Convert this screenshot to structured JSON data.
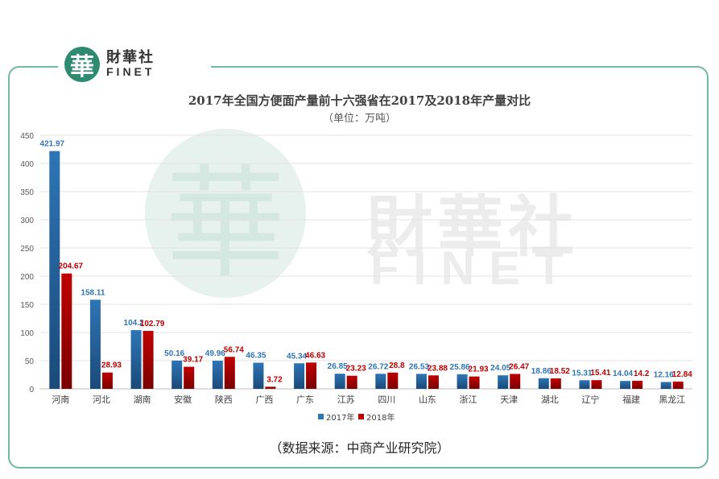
{
  "brand": {
    "logo_char": "華",
    "name_cn": "財華社",
    "name_en": "FINET"
  },
  "source_note": "（数据来源：中商产业研究院）",
  "colors": {
    "series_2017": "#2e75b6",
    "series_2018": "#c00000",
    "frame": "#6fb8a4",
    "brand": "#2f8b6f"
  },
  "chart_data": {
    "type": "bar",
    "title": "2017年全国方便面产量前十六强省在2017及2018年产量对比",
    "subtitle": "（单位：万吨）",
    "categories": [
      "河南",
      "河北",
      "湖南",
      "安徽",
      "陕西",
      "广西",
      "广东",
      "江苏",
      "四川",
      "山东",
      "浙江",
      "天津",
      "湖北",
      "辽宁",
      "福建",
      "黑龙江"
    ],
    "series": [
      {
        "name": "2017年",
        "values": [
          421.97,
          158.11,
          104.2,
          50.16,
          49.96,
          46.35,
          45.34,
          26.85,
          26.72,
          26.53,
          25.86,
          24.05,
          18.86,
          15.31,
          14.04,
          12.16
        ]
      },
      {
        "name": "2018年",
        "values": [
          204.67,
          28.93,
          102.79,
          39.17,
          56.74,
          3.72,
          46.63,
          23.23,
          28.8,
          23.88,
          21.93,
          26.47,
          18.52,
          15.41,
          14.2,
          12.84
        ]
      }
    ],
    "value_labels": [
      [
        "421.97",
        "158.11",
        "104.2",
        "50.16",
        "49.96",
        "46.35",
        "45.34",
        "26.85",
        "26.72",
        "26.53",
        "25.86",
        "24.05",
        "18.86",
        "15.31",
        "14.04",
        "12.16"
      ],
      [
        "204.67",
        "28.93",
        "102.79",
        "39.17",
        "56.74",
        "3.72",
        "46.63",
        "23.23",
        "28.8",
        "23.88",
        "21.93",
        "26.47",
        "18.52",
        "15.41",
        "14.2",
        "12.84"
      ]
    ],
    "ylim": [
      0,
      450
    ],
    "yticks": [
      "0",
      "50",
      "100",
      "150",
      "200",
      "250",
      "300",
      "350",
      "400",
      "450"
    ],
    "grid": true,
    "legend": "bottom"
  }
}
